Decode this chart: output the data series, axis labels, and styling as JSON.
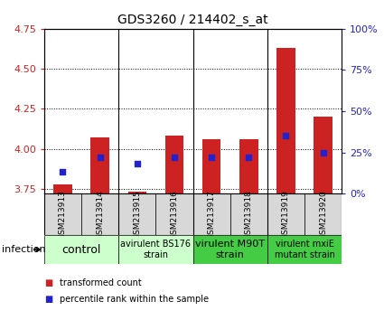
{
  "title": "GDS3260 / 214402_s_at",
  "samples": [
    "GSM213913",
    "GSM213914",
    "GSM213915",
    "GSM213916",
    "GSM213917",
    "GSM213918",
    "GSM213919",
    "GSM213920"
  ],
  "transformed_count": [
    3.78,
    4.07,
    3.73,
    4.08,
    4.06,
    4.06,
    4.63,
    4.2
  ],
  "percentile_rank": [
    13,
    22,
    18,
    22,
    22,
    22,
    35,
    25
  ],
  "ylim_left": [
    3.72,
    4.75
  ],
  "ylim_right": [
    0,
    100
  ],
  "yticks_left": [
    3.75,
    4.0,
    4.25,
    4.5,
    4.75
  ],
  "yticks_right": [
    0,
    25,
    50,
    75,
    100
  ],
  "bar_color": "#cc2222",
  "dot_color": "#2222cc",
  "bar_bottom": 3.72,
  "group_configs": [
    {
      "start": 0,
      "end": 2,
      "label": "control",
      "color": "#ccffcc",
      "fontsize": 9
    },
    {
      "start": 2,
      "end": 4,
      "label": "avirulent BS176\nstrain",
      "color": "#ccffcc",
      "fontsize": 7
    },
    {
      "start": 4,
      "end": 6,
      "label": "virulent M90T\nstrain",
      "color": "#44cc44",
      "fontsize": 8
    },
    {
      "start": 6,
      "end": 8,
      "label": "virulent mxiE\nmutant strain",
      "color": "#44cc44",
      "fontsize": 7
    }
  ],
  "group_boundaries": [
    2,
    4,
    6
  ],
  "infection_label": "infection",
  "legend_items": [
    {
      "color": "#cc2222",
      "label": "transformed count"
    },
    {
      "color": "#2222cc",
      "label": "percentile rank within the sample"
    }
  ]
}
